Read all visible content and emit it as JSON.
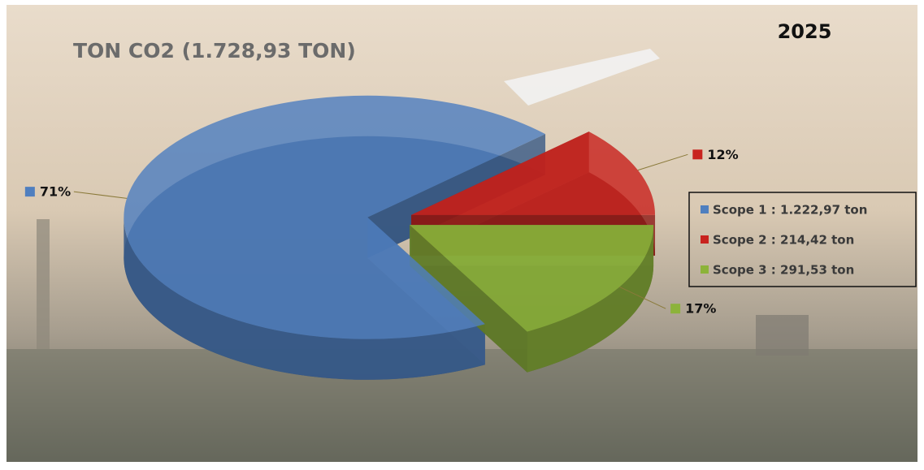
{
  "chart_data": {
    "type": "pie",
    "title": "TON CO2 (1.728,93 TON)",
    "annotation": "2025",
    "categories": [
      "Scope 1 : 1.222,97 ton",
      "Scope 2 : 214,42 ton",
      "Scope 3 : 291,53 ton"
    ],
    "values": [
      71,
      12,
      17
    ],
    "value_labels": [
      "71%",
      "12%",
      "17%"
    ],
    "colors": [
      "#4f7fbf",
      "#c8231e",
      "#8cb33a"
    ]
  }
}
